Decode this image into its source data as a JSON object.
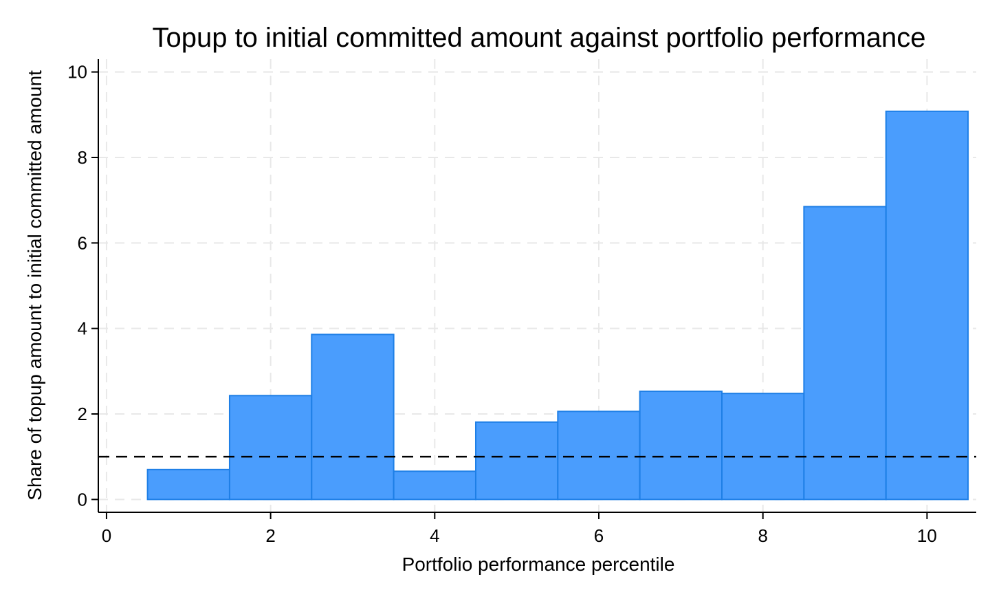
{
  "chart_data": {
    "type": "bar",
    "title": "Topup to initial committed amount against portfolio performance",
    "xlabel": "Portfolio performance percentile",
    "ylabel": "Share of topup amount to initial committed amount",
    "x": [
      1,
      2,
      3,
      4,
      5,
      6,
      7,
      8,
      9,
      10
    ],
    "values": [
      0.7,
      2.43,
      3.86,
      0.66,
      1.81,
      2.06,
      2.53,
      2.48,
      6.85,
      9.08
    ],
    "bar_width": 1,
    "xlim": [
      -0.1,
      10.6
    ],
    "ylim": [
      -0.3,
      10.3
    ],
    "xticks": [
      0,
      2,
      4,
      6,
      8,
      10
    ],
    "yticks": [
      0,
      2,
      4,
      6,
      8,
      10
    ],
    "xtick_labels": [
      "0",
      "2",
      "4",
      "6",
      "8",
      "10"
    ],
    "ytick_labels": [
      "0",
      "2",
      "4",
      "6",
      "8",
      "10"
    ],
    "reference_line": {
      "y": 1,
      "style": "dashed"
    },
    "grid": true,
    "legend": "none",
    "colors": {
      "bar_fill": "#4a9dfd",
      "bar_stroke": "#1e7fe6",
      "grid": "#e8e8e8",
      "axis": "#000000"
    }
  }
}
